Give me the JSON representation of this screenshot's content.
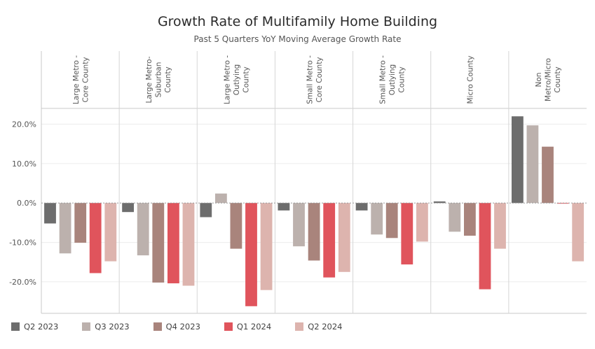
{
  "chart_data": {
    "type": "bar",
    "title": "Growth Rate of Multifamily Home Building",
    "subtitle": "Past 5 Quarters YoY Moving Average Growth Rate",
    "ylim": [
      -28,
      24
    ],
    "yticks": [
      "20.0%",
      "10.0%",
      "0.0%",
      "-10.0%",
      "-20.0%"
    ],
    "categories": [
      [
        "Large Metro -",
        "Core County"
      ],
      [
        "Large Metro-",
        "Suburban",
        "County"
      ],
      [
        "Large Metro -",
        "Outlying",
        "County"
      ],
      [
        "Small Metro -",
        "Core County"
      ],
      [
        "Small Metro -",
        "Outlying",
        "County"
      ],
      [
        "Micro County"
      ],
      [
        "Non",
        "Metro/Micro",
        "County"
      ]
    ],
    "series": [
      {
        "name": "Q2 2023",
        "color": "#6d6d6d",
        "values": [
          -5.2,
          -2.3,
          -3.6,
          -1.9,
          -1.9,
          0.4,
          22.0
        ]
      },
      {
        "name": "Q3 2023",
        "color": "#bcb1ad",
        "values": [
          -12.8,
          -13.3,
          2.4,
          -11.0,
          -8.0,
          -7.3,
          19.7
        ]
      },
      {
        "name": "Q4 2023",
        "color": "#a9847c",
        "values": [
          -10.1,
          -20.2,
          -11.6,
          -14.6,
          -8.9,
          -8.3,
          14.3
        ]
      },
      {
        "name": "Q1 2024",
        "color": "#e0545c",
        "values": [
          -17.8,
          -20.4,
          -26.2,
          -18.9,
          -15.6,
          -21.9,
          -0.1
        ]
      },
      {
        "name": "Q2 2024",
        "color": "#ddb4ae",
        "values": [
          -14.8,
          -21.0,
          -22.1,
          -17.5,
          -9.8,
          -11.6,
          -14.8
        ]
      }
    ]
  }
}
